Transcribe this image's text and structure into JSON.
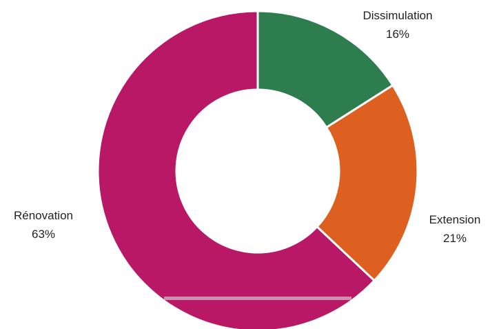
{
  "chart_data": {
    "type": "pie",
    "variant": "donut",
    "categories": [
      "Dissimulation",
      "Extension",
      "Rénovation"
    ],
    "values": [
      16,
      21,
      63
    ],
    "value_labels": [
      "16%",
      "21%",
      "63%"
    ],
    "colors": [
      "#2e7d4f",
      "#dd6020",
      "#b81866"
    ],
    "start_angle": "12 o'clock",
    "direction": "clockwise",
    "legend": "none (labels next to slices)"
  }
}
